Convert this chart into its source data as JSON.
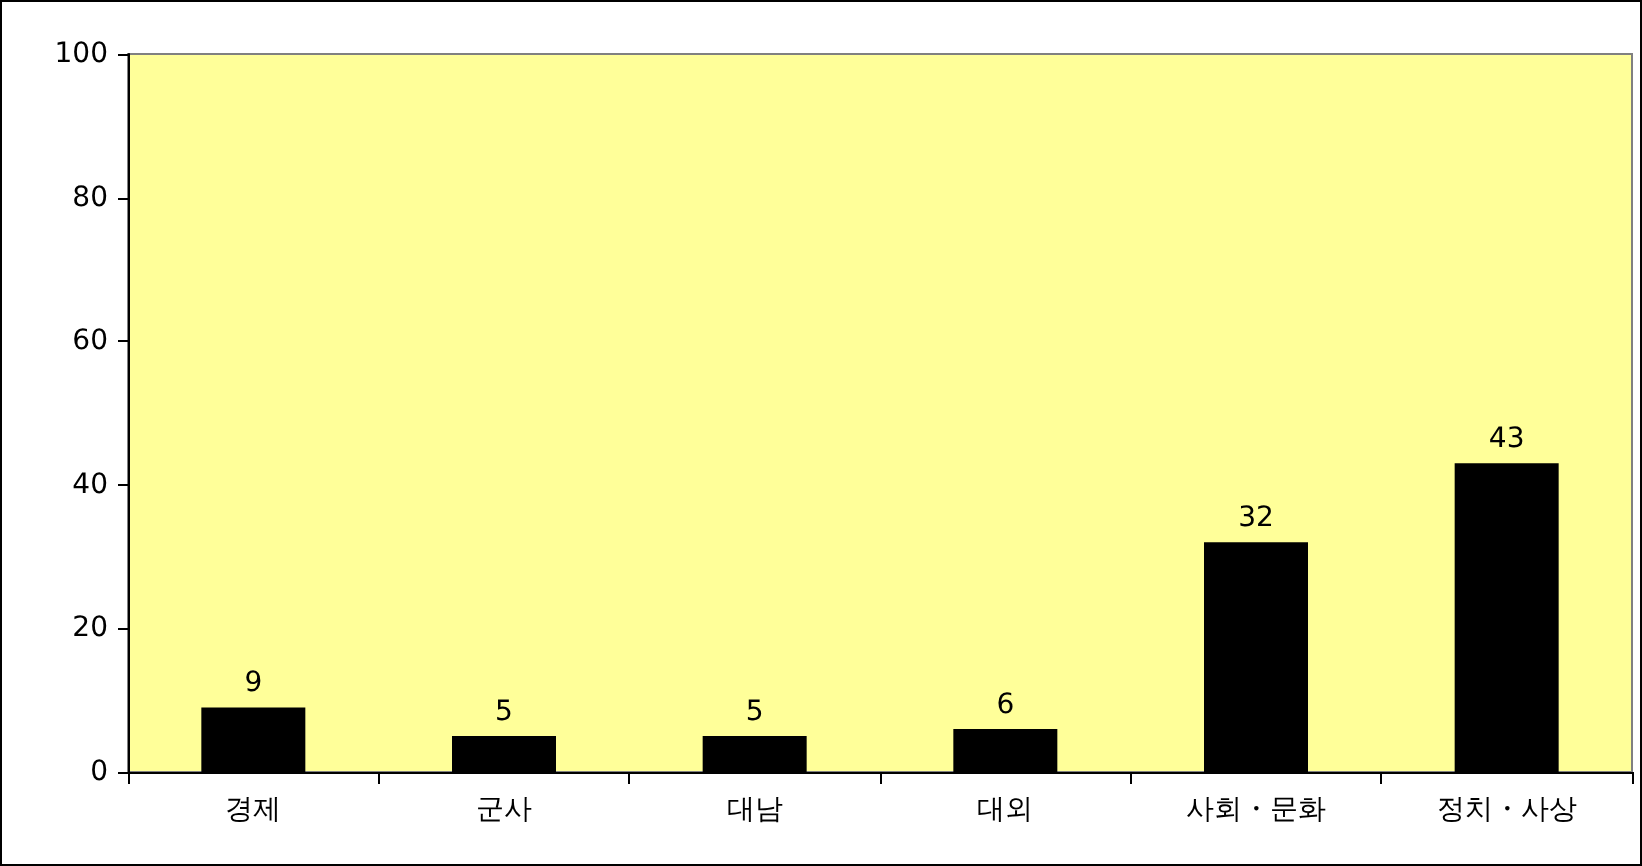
{
  "chart_data": {
    "type": "bar",
    "categories": [
      "경제",
      "군사",
      "대남",
      "대외",
      "사회・문화",
      "정치・사상"
    ],
    "values": [
      9,
      5,
      5,
      6,
      32,
      43
    ],
    "color": "#000000",
    "ylim": [
      0,
      100
    ],
    "yticks": [
      0,
      20,
      40,
      60,
      80,
      100
    ],
    "data_labels": true
  }
}
